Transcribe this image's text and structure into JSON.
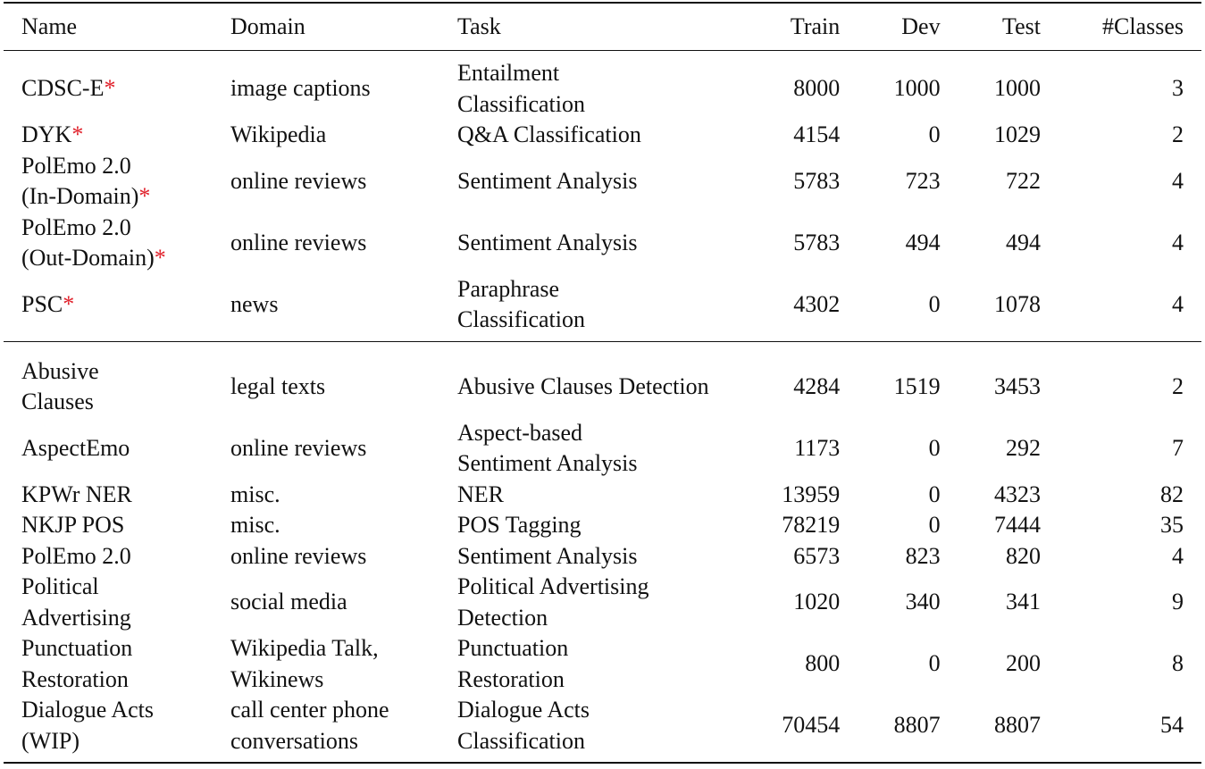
{
  "table": {
    "columns": [
      "Name",
      "Domain",
      "Task",
      "Train",
      "Dev",
      "Test",
      "#Classes"
    ],
    "marker": "*",
    "marker_color": "#e0202a",
    "sections": [
      [
        {
          "name": [
            "CDSC-E"
          ],
          "starred": true,
          "domain": [
            "image captions"
          ],
          "task": [
            "Entailment",
            "Classification"
          ],
          "train": "8000",
          "dev": "1000",
          "test": "1000",
          "classes": "3"
        },
        {
          "name": [
            "DYK"
          ],
          "starred": true,
          "domain": [
            "Wikipedia"
          ],
          "task": [
            "Q&A Classification"
          ],
          "train": "4154",
          "dev": "0",
          "test": "1029",
          "classes": "2"
        },
        {
          "name": [
            "PolEmo 2.0",
            "(In-Domain)"
          ],
          "starred": true,
          "domain": [
            "online reviews"
          ],
          "task": [
            "Sentiment Analysis"
          ],
          "train": "5783",
          "dev": "723",
          "test": "722",
          "classes": "4"
        },
        {
          "name": [
            "PolEmo 2.0",
            "(Out-Domain)"
          ],
          "starred": true,
          "domain": [
            "online reviews"
          ],
          "task": [
            "Sentiment Analysis"
          ],
          "train": "5783",
          "dev": "494",
          "test": "494",
          "classes": "4"
        },
        {
          "name": [
            "PSC"
          ],
          "starred": true,
          "domain": [
            "news"
          ],
          "task": [
            "Paraphrase",
            "Classification"
          ],
          "train": "4302",
          "dev": "0",
          "test": "1078",
          "classes": "4"
        }
      ],
      [
        {
          "name": [
            "Abusive",
            "Clauses"
          ],
          "starred": false,
          "domain": [
            "legal texts"
          ],
          "task": [
            "Abusive Clauses Detection"
          ],
          "train": "4284",
          "dev": "1519",
          "test": "3453",
          "classes": "2"
        },
        {
          "name": [
            "AspectEmo"
          ],
          "starred": false,
          "domain": [
            "online reviews"
          ],
          "task": [
            "Aspect-based",
            "Sentiment Analysis"
          ],
          "train": "1173",
          "dev": "0",
          "test": "292",
          "classes": "7"
        },
        {
          "name": [
            "KPWr NER"
          ],
          "starred": false,
          "domain": [
            "misc."
          ],
          "task": [
            "NER"
          ],
          "train": "13959",
          "dev": "0",
          "test": "4323",
          "classes": "82"
        },
        {
          "name": [
            "NKJP POS"
          ],
          "starred": false,
          "domain": [
            "misc."
          ],
          "task": [
            "POS Tagging"
          ],
          "train": "78219",
          "dev": "0",
          "test": "7444",
          "classes": "35"
        },
        {
          "name": [
            "PolEmo 2.0"
          ],
          "starred": false,
          "domain": [
            "online reviews"
          ],
          "task": [
            "Sentiment Analysis"
          ],
          "train": "6573",
          "dev": "823",
          "test": "820",
          "classes": "4"
        },
        {
          "name": [
            "Political",
            "Advertising"
          ],
          "starred": false,
          "domain": [
            "social media"
          ],
          "task": [
            "Political Advertising",
            "Detection"
          ],
          "train": "1020",
          "dev": "340",
          "test": "341",
          "classes": "9"
        },
        {
          "name": [
            "Punctuation",
            "Restoration"
          ],
          "starred": false,
          "domain": [
            "Wikipedia Talk,",
            "Wikinews"
          ],
          "task": [
            "Punctuation",
            "Restoration"
          ],
          "train": "800",
          "dev": "0",
          "test": "200",
          "classes": "8"
        },
        {
          "name": [
            "Dialogue Acts",
            "(WIP)"
          ],
          "starred": false,
          "domain": [
            "call center phone",
            "conversations"
          ],
          "task": [
            "Dialogue Acts",
            "Classification"
          ],
          "train": "70454",
          "dev": "8807",
          "test": "8807",
          "classes": "54"
        }
      ]
    ]
  }
}
